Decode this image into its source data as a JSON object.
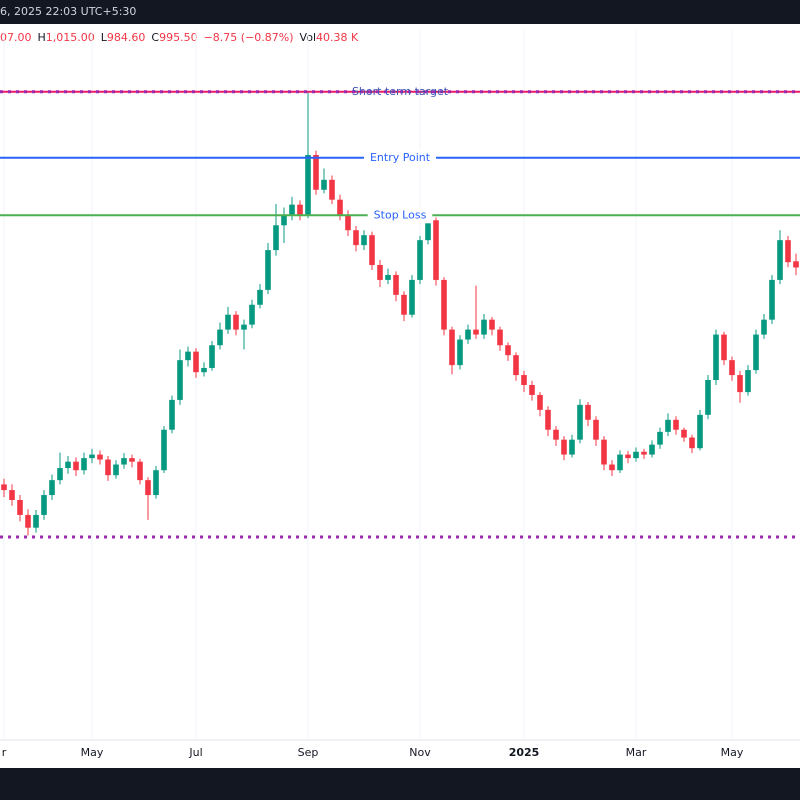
{
  "topbar": {
    "datetime": "6, 2025 22:03 UTC+5:30"
  },
  "header": {
    "open": "07.00",
    "items": [
      {
        "label": "H",
        "value": "1,015.00"
      },
      {
        "label": "L",
        "value": "984.60"
      },
      {
        "label": "C",
        "value": "995.50"
      },
      {
        "label": null,
        "value": "−8.75 (−0.87%)"
      },
      {
        "label": "Vol",
        "value": "40.38 K"
      }
    ]
  },
  "chart_data": {
    "type": "candlestick",
    "categories": [
      "r",
      null,
      null,
      null,
      null,
      null,
      null,
      null,
      null,
      null,
      null,
      "May",
      null,
      null,
      null,
      null,
      null,
      null,
      null,
      null,
      null,
      null,
      null,
      null,
      "Jul",
      null,
      null,
      null,
      null,
      null,
      null,
      null,
      null,
      null,
      null,
      null,
      null,
      null,
      "Sep",
      null,
      null,
      null,
      null,
      null,
      null,
      null,
      null,
      null,
      null,
      null,
      null,
      null,
      "Nov",
      null,
      null,
      null,
      null,
      null,
      null,
      null,
      null,
      null,
      null,
      null,
      null,
      "2025",
      null,
      null,
      null,
      null,
      null,
      null,
      null,
      null,
      null,
      null,
      null,
      null,
      null,
      "Mar",
      null,
      null,
      null,
      null,
      null,
      null,
      null,
      null,
      null,
      null,
      null,
      "May",
      null,
      null,
      null,
      null,
      null,
      null,
      null,
      null
    ],
    "open": [
      690,
      682,
      668,
      647,
      629,
      647,
      675,
      696,
      713,
      722,
      710,
      727,
      732,
      725,
      703,
      718,
      727,
      722,
      696,
      675,
      710,
      767,
      809,
      865,
      877,
      848,
      854,
      886,
      908,
      929,
      908,
      915,
      943,
      964,
      1020,
      1055,
      1070,
      1084,
      1070,
      1154,
      1105,
      1119,
      1091,
      1070,
      1048,
      1027,
      1041,
      999,
      978,
      985,
      957,
      929,
      978,
      1034,
      1062,
      978,
      908,
      858,
      894,
      908,
      901,
      922,
      908,
      886,
      872,
      844,
      830,
      816,
      795,
      767,
      753,
      732,
      753,
      802,
      781,
      753,
      718,
      710,
      732,
      727,
      736,
      732,
      746,
      764,
      781,
      767,
      756,
      741,
      788,
      837,
      901,
      865,
      844,
      820,
      851,
      901,
      922,
      978,
      1034,
      1004.25
    ],
    "high": [
      698,
      690,
      675,
      655,
      654,
      682,
      704,
      735,
      730,
      728,
      735,
      740,
      738,
      730,
      724,
      734,
      732,
      726,
      700,
      716,
      772,
      815,
      880,
      884,
      882,
      862,
      892,
      918,
      940,
      934,
      922,
      950,
      972,
      1030,
      1085,
      1080,
      1095,
      1090,
      1243,
      1160,
      1135,
      1125,
      1098,
      1076,
      1054,
      1048,
      1046,
      1006,
      994,
      990,
      962,
      985,
      1040,
      1069,
      1066,
      982,
      912,
      900,
      915,
      970,
      930,
      926,
      912,
      890,
      876,
      850,
      836,
      820,
      800,
      772,
      758,
      760,
      810,
      806,
      786,
      758,
      724,
      738,
      737,
      742,
      740,
      752,
      770,
      790,
      786,
      770,
      760,
      795,
      844,
      908,
      905,
      870,
      850,
      858,
      908,
      930,
      985,
      1048,
      1040,
      1015
    ],
    "low": [
      672,
      660,
      638,
      618,
      622,
      640,
      668,
      690,
      705,
      702,
      704,
      720,
      718,
      695,
      698,
      712,
      714,
      690,
      640,
      670,
      706,
      762,
      802,
      856,
      840,
      842,
      850,
      880,
      902,
      900,
      880,
      910,
      938,
      958,
      1012,
      1030,
      1062,
      1062,
      1065,
      1098,
      1100,
      1085,
      1062,
      1040,
      1018,
      1020,
      992,
      968,
      972,
      948,
      920,
      925,
      972,
      1028,
      970,
      900,
      845,
      852,
      888,
      895,
      895,
      900,
      878,
      864,
      836,
      820,
      808,
      786,
      758,
      744,
      724,
      728,
      748,
      772,
      744,
      710,
      702,
      706,
      720,
      722,
      726,
      728,
      740,
      758,
      760,
      750,
      734,
      738,
      782,
      830,
      858,
      836,
      805,
      815,
      846,
      895,
      916,
      972,
      996,
      984.6
    ],
    "close": [
      682,
      668,
      647,
      629,
      647,
      675,
      696,
      713,
      722,
      710,
      727,
      732,
      725,
      703,
      718,
      727,
      722,
      696,
      675,
      710,
      767,
      809,
      865,
      877,
      848,
      854,
      886,
      908,
      929,
      908,
      915,
      943,
      964,
      1020,
      1055,
      1070,
      1084,
      1070,
      1154,
      1105,
      1119,
      1091,
      1070,
      1048,
      1027,
      1041,
      999,
      978,
      985,
      957,
      929,
      978,
      1034,
      1062,
      978,
      908,
      858,
      894,
      908,
      901,
      922,
      908,
      886,
      872,
      844,
      830,
      816,
      795,
      767,
      753,
      732,
      753,
      802,
      781,
      753,
      718,
      710,
      732,
      727,
      736,
      732,
      746,
      764,
      781,
      767,
      756,
      741,
      788,
      837,
      901,
      865,
      844,
      820,
      851,
      901,
      922,
      978,
      1034,
      1003,
      995.5
    ],
    "up_color": "#089981",
    "down_color": "#f23645",
    "ylim": [
      330,
      1330
    ],
    "levels": [
      {
        "label": "Short term target",
        "value": 1243,
        "color": "#e91e63",
        "style": "solid-dotted",
        "label_color": "#3f51b5"
      },
      {
        "label": "Entry Point",
        "value": 1150,
        "color": "#2962ff",
        "style": "solid",
        "label_color": "#2962ff"
      },
      {
        "label": "Stop Loss",
        "value": 1069,
        "color": "#4caf50",
        "style": "solid",
        "label_color": "#2962ff"
      },
      {
        "value": 616,
        "color": "#9c27b0",
        "style": "dotted"
      }
    ]
  }
}
